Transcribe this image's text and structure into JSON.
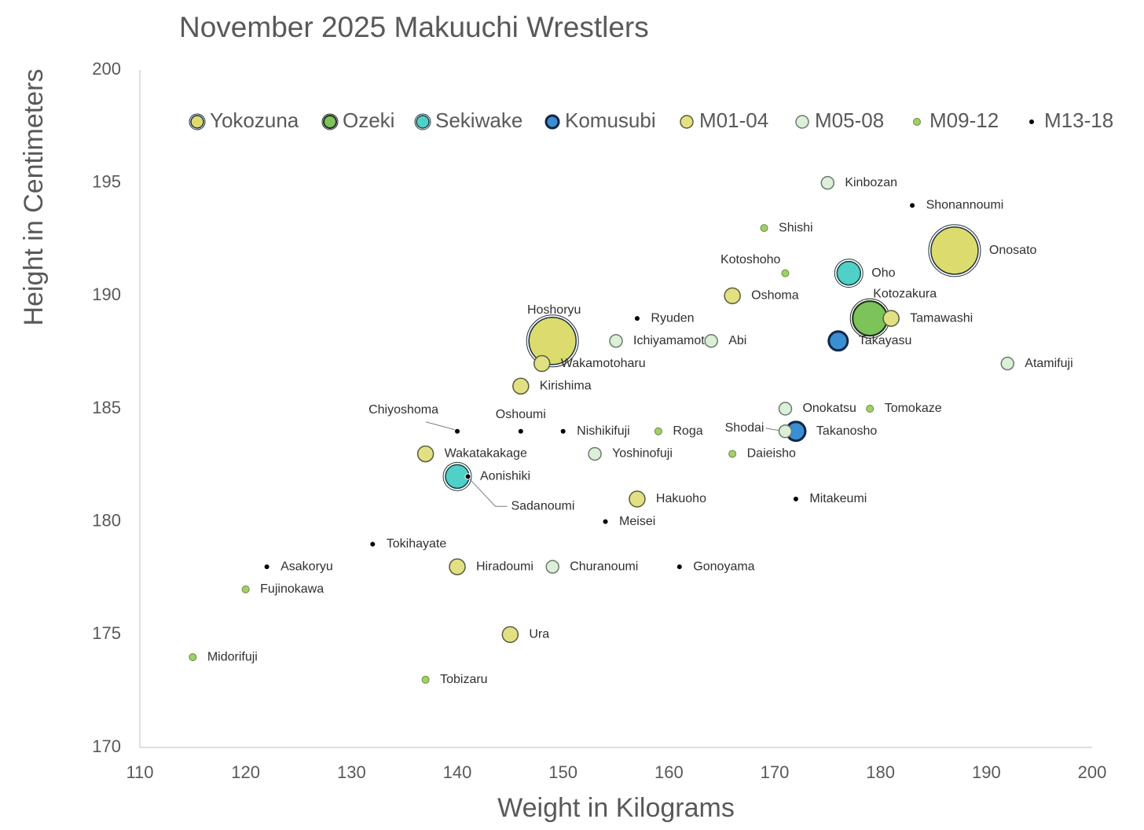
{
  "chart_data": {
    "type": "bubble",
    "title": "November 2025 Makuuchi Wrestlers",
    "x_label": "Weight in Kilograms",
    "y_label": "Height in Centimeters",
    "xlim": [
      110,
      200
    ],
    "xticks": [
      110,
      120,
      130,
      140,
      150,
      160,
      170,
      180,
      190,
      200
    ],
    "ylim": [
      170,
      200
    ],
    "yticks": [
      170,
      175,
      180,
      185,
      190,
      195,
      200
    ],
    "grid": false,
    "legend": "top",
    "series": [
      {
        "name": "Yokozuna",
        "color": "#dcdc6e",
        "x": [
          187,
          149
        ],
        "values": [
          192,
          188
        ],
        "labels": [
          "Onosato",
          "Hoshoryu"
        ]
      },
      {
        "name": "Ozeki",
        "color": "#7cc35a",
        "x": [
          179
        ],
        "values": [
          189
        ],
        "labels": [
          "Kotozakura"
        ]
      },
      {
        "name": "Sekiwake",
        "color": "#4fd0c8",
        "x": [
          177,
          140
        ],
        "values": [
          191,
          182
        ],
        "labels": [
          "Oho",
          "Aonishiki"
        ]
      },
      {
        "name": "Komusubi",
        "color": "#3a8fd0",
        "x": [
          176,
          172
        ],
        "values": [
          188,
          184
        ],
        "labels": [
          "Takayasu",
          "Takanosho"
        ]
      },
      {
        "name": "M01-04",
        "color": "#e1e183",
        "x": [
          166,
          181,
          148,
          146,
          137,
          157,
          140,
          145
        ],
        "values": [
          190,
          189,
          187,
          186,
          183,
          181,
          178,
          175
        ],
        "labels": [
          "Oshoma",
          "Tamawashi",
          "Wakamotoharu",
          "Kirishima",
          "Wakatakakage",
          "Hakuoho",
          "Hiradoumi",
          "Ura"
        ]
      },
      {
        "name": "M05-08",
        "color": "#dcefd8",
        "x": [
          175,
          155,
          164,
          192,
          171,
          171,
          153,
          149
        ],
        "values": [
          195,
          188,
          188,
          187,
          185,
          184,
          183,
          178
        ],
        "labels": [
          "Kinbozan",
          "Ichiyamamoto",
          "Abi",
          "Atamifuji",
          "Onokatsu",
          "Shodai",
          "Yoshinofuji",
          "Churanoumi"
        ]
      },
      {
        "name": "M09-12",
        "color": "#9fd06a",
        "x": [
          169,
          171,
          179,
          159,
          166,
          120,
          115,
          137
        ],
        "values": [
          193,
          191,
          185,
          184,
          183,
          177,
          174,
          173
        ],
        "labels": [
          "Shishi",
          "Kotoshoho",
          "Tomokaze",
          "Roga",
          "Daieisho",
          "Fujinokawa",
          "Midorifuji",
          "Tobizaru"
        ]
      },
      {
        "name": "M13-18",
        "color": "#000000",
        "x": [
          183,
          157,
          140,
          146,
          150,
          141,
          172,
          154,
          132,
          122,
          161
        ],
        "values": [
          194,
          189,
          184,
          184,
          184,
          182,
          181,
          180,
          179,
          178,
          178
        ],
        "labels": [
          "Shonannoumi",
          "Ryuden",
          "Chiyoshoma",
          "Oshoumi",
          "Nishikifuji",
          "Sadanoumi",
          "Mitakeumi",
          "Meisei",
          "Tokihayate",
          "Asakoryu",
          "Gonoyama"
        ]
      }
    ]
  }
}
